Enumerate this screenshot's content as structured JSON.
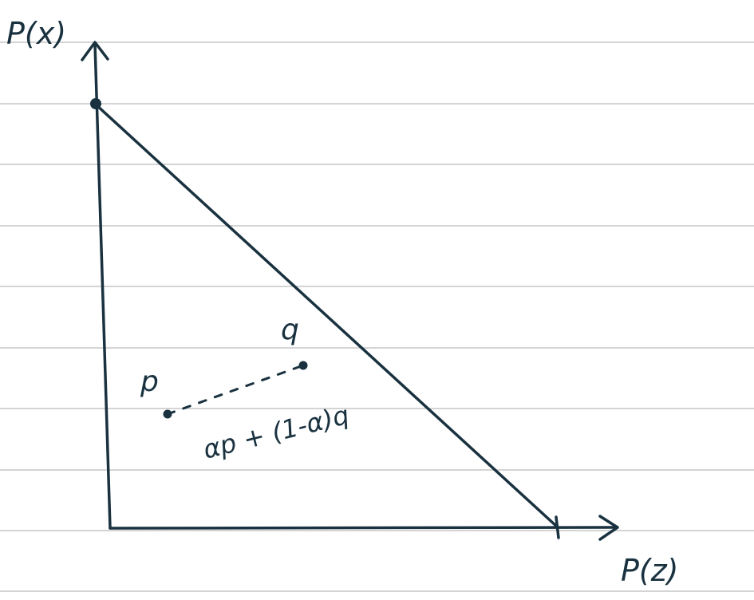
{
  "diagram": {
    "axis_labels": {
      "y": "P(x)",
      "x": "P(z)"
    },
    "points": {
      "p": "p",
      "q": "q"
    },
    "segment_label": "αp + (1-α)q",
    "colors": {
      "ink": "#1a3240",
      "ruled_line": "#d4d4d4",
      "paper": "#ffffff"
    }
  }
}
